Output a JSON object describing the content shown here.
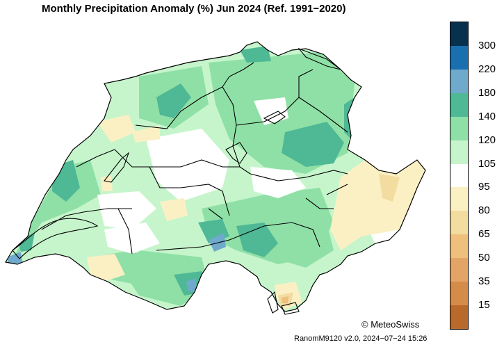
{
  "title": "Monthly Precipitation Anomaly (%) Jun 2024  (Ref. 1991−2020)",
  "legend": {
    "labels": [
      "300",
      "220",
      "180",
      "140",
      "120",
      "105",
      "95",
      "80",
      "65",
      "50",
      "35",
      "15"
    ],
    "colors": [
      "#08304f",
      "#1a6fae",
      "#6fa9cb",
      "#4fb895",
      "#8fe0a6",
      "#c6f5cc",
      "#ffffff",
      "#fbf0c4",
      "#f2dca0",
      "#eec07c",
      "#e3a565",
      "#d58c48",
      "#b9692a"
    ]
  },
  "copyright": "© MeteoSwiss",
  "version": "RanomM9120 v2.0, 2024−07−24 15:26"
}
